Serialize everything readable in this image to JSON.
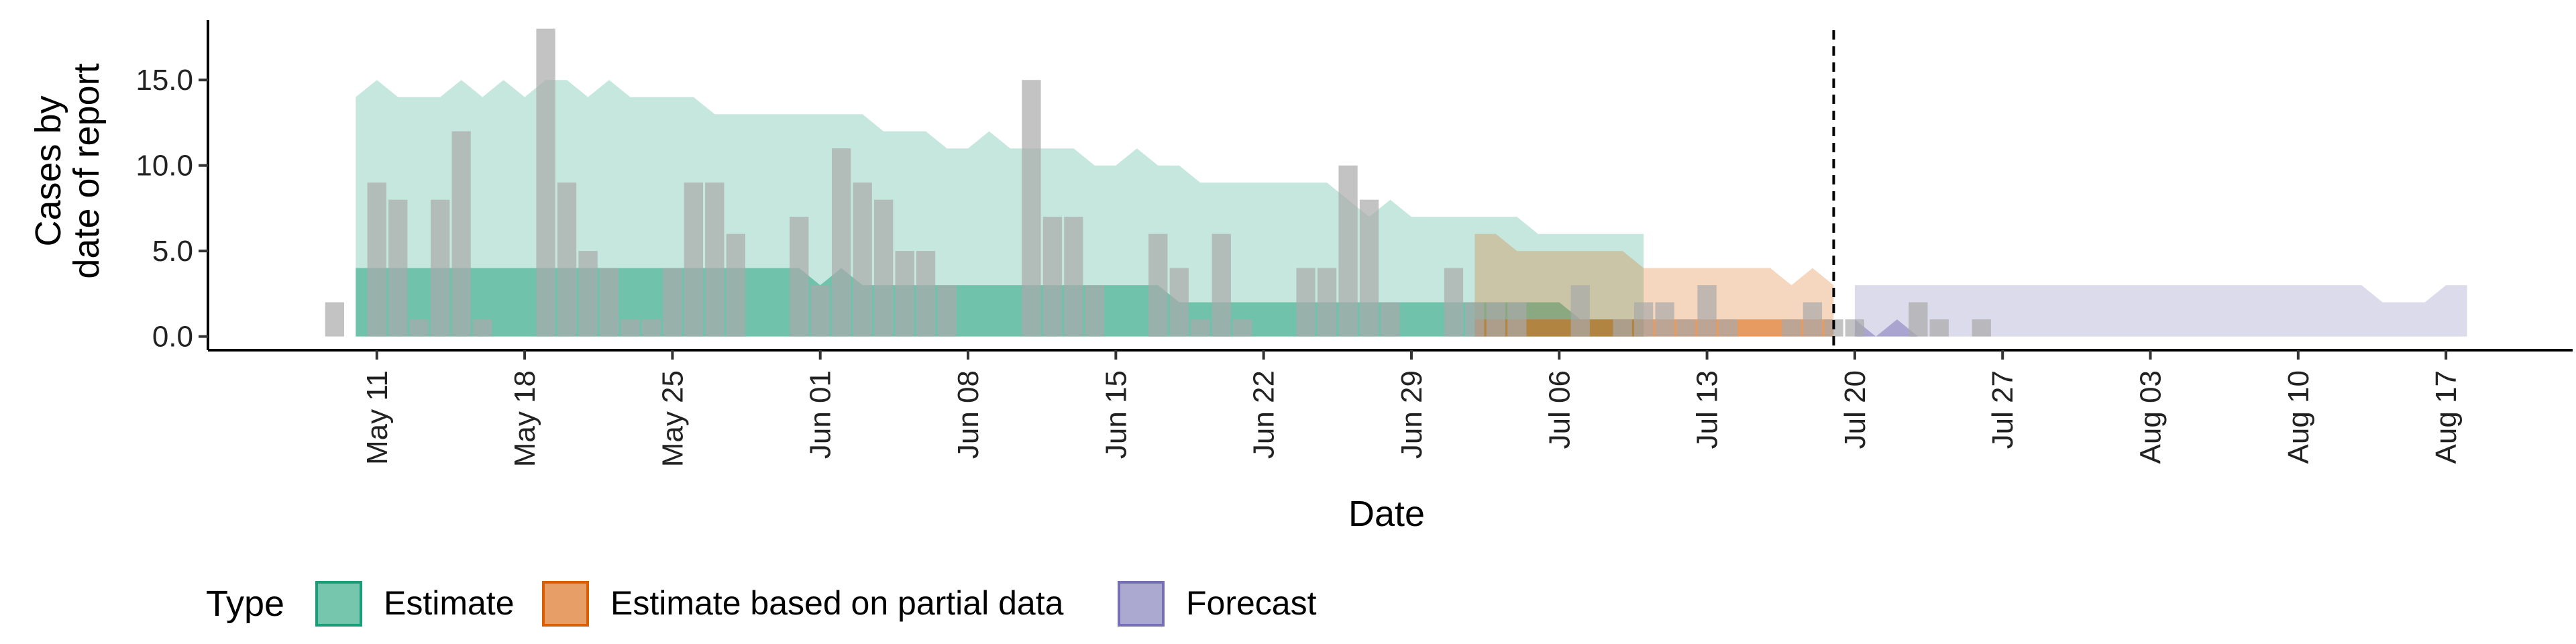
{
  "chart_data": {
    "type": "area",
    "xlabel": "Date",
    "ylabel_lines": [
      "Cases by",
      "date of report"
    ],
    "ylim": [
      -0.8,
      18.5
    ],
    "y_ticks": [
      0,
      5,
      10,
      15
    ],
    "y_tick_labels": [
      "0.0",
      "5.0",
      "10.0",
      "15.0"
    ],
    "x_ticks": [
      "2020-05-11",
      "2020-05-18",
      "2020-05-25",
      "2020-06-01",
      "2020-06-08",
      "2020-06-15",
      "2020-06-22",
      "2020-06-29",
      "2020-07-06",
      "2020-07-13",
      "2020-07-20",
      "2020-07-27",
      "2020-08-03",
      "2020-08-10",
      "2020-08-17"
    ],
    "x_tick_labels": [
      "May 11",
      "May 18",
      "May 25",
      "Jun 01",
      "Jun 08",
      "Jun 15",
      "Jun 22",
      "Jun 29",
      "Jul 06",
      "Jul 13",
      "Jul 20",
      "Jul 27",
      "Aug 03",
      "Aug 10",
      "Aug 17"
    ],
    "xlim": [
      "2020-05-03",
      "2020-08-23"
    ],
    "forecast_line_date": "2020-07-19",
    "legend_title": "Type",
    "legend_position": "bottom",
    "colors": {
      "Estimate": "#1b9e77",
      "Estimate based on partial data": "#d95f02",
      "Forecast": "#7570b3",
      "observed": "#a9a9a9"
    },
    "observed_cases": {
      "start_date": "2020-05-09",
      "values": [
        2,
        0,
        9,
        8,
        1,
        8,
        12,
        1,
        0,
        0,
        18,
        9,
        5,
        4,
        1,
        1,
        4,
        9,
        9,
        6,
        0,
        0,
        7,
        3,
        11,
        9,
        8,
        5,
        5,
        3,
        0,
        0,
        0,
        15,
        7,
        7,
        3,
        0,
        0,
        6,
        4,
        1,
        6,
        1,
        0,
        0,
        4,
        4,
        10,
        8,
        2,
        0,
        0,
        4,
        2,
        2,
        2,
        0,
        0,
        3,
        0,
        1,
        2,
        2,
        1,
        3,
        1,
        0,
        0,
        1,
        2,
        1,
        1,
        0,
        0,
        2,
        1,
        0,
        1,
        0,
        0,
        0
      ]
    },
    "series": [
      {
        "name": "Estimate",
        "start_date": "2020-05-10",
        "inner_lower": [
          0,
          0,
          0,
          0,
          0,
          0,
          0,
          0,
          0,
          0,
          0,
          0,
          0,
          0,
          0,
          0,
          0,
          0,
          0,
          0,
          0,
          0,
          0,
          0,
          0,
          0,
          0,
          0,
          0,
          0,
          0,
          0,
          0,
          0,
          0,
          0,
          0,
          0,
          0,
          0,
          0,
          0,
          0,
          0,
          0,
          0,
          0,
          0,
          0,
          0,
          0,
          0,
          0,
          0,
          0,
          0,
          0,
          0,
          0,
          0,
          0,
          0
        ],
        "inner_upper": [
          4,
          4,
          4,
          4,
          4,
          4,
          4,
          4,
          4,
          4,
          4,
          4,
          4,
          4,
          4,
          4,
          4,
          4,
          4,
          4,
          4,
          4,
          3,
          4,
          3,
          3,
          3,
          3,
          3,
          3,
          3,
          3,
          3,
          3,
          3,
          3,
          3,
          3,
          3,
          2,
          2,
          2,
          2,
          2,
          2,
          2,
          2,
          2,
          2,
          2,
          2,
          2,
          2,
          2,
          2,
          2,
          2,
          2,
          1,
          1,
          1,
          1
        ],
        "outer_lower": [
          0,
          0,
          0,
          0,
          0,
          0,
          0,
          0,
          0,
          0,
          0,
          0,
          0,
          0,
          0,
          0,
          0,
          0,
          0,
          0,
          0,
          0,
          0,
          0,
          0,
          0,
          0,
          0,
          0,
          0,
          0,
          0,
          0,
          0,
          0,
          0,
          0,
          0,
          0,
          0,
          0,
          0,
          0,
          0,
          0,
          0,
          0,
          0,
          0,
          0,
          0,
          0,
          0,
          0,
          0,
          0,
          0,
          0,
          0,
          0,
          0,
          0
        ],
        "outer_upper": [
          14,
          15,
          14,
          14,
          14,
          15,
          14,
          15,
          14,
          15,
          15,
          14,
          15,
          14,
          14,
          14,
          14,
          13,
          13,
          13,
          13,
          13,
          13,
          13,
          13,
          12,
          12,
          12,
          11,
          11,
          12,
          11,
          11,
          11,
          11,
          10,
          10,
          11,
          10,
          10,
          9,
          9,
          9,
          9,
          9,
          9,
          9,
          8,
          7,
          8,
          7,
          7,
          7,
          7,
          7,
          7,
          6,
          6,
          6,
          6,
          6,
          6
        ]
      },
      {
        "name": "Estimate based on partial data",
        "start_date": "2020-07-02",
        "inner_lower": [
          0,
          0,
          0,
          0,
          0,
          0,
          0,
          0,
          0,
          0,
          0,
          0,
          0,
          0,
          0,
          0,
          0,
          0
        ],
        "inner_upper": [
          1,
          1,
          1,
          1,
          1,
          1,
          1,
          1,
          1,
          1,
          1,
          1,
          1,
          1,
          1,
          1,
          1,
          1
        ],
        "outer_lower": [
          0,
          0,
          0,
          0,
          0,
          0,
          0,
          0,
          0,
          0,
          0,
          0,
          0,
          0,
          0,
          0,
          0,
          0
        ],
        "outer_upper": [
          6,
          6,
          5,
          5,
          5,
          5,
          5,
          5,
          4,
          4,
          4,
          4,
          4,
          4,
          4,
          3,
          4,
          3
        ]
      },
      {
        "name": "Forecast",
        "start_date": "2020-07-20",
        "inner_lower": [
          0,
          0,
          0,
          0,
          0,
          0,
          0,
          0,
          0,
          0,
          0,
          0,
          0,
          0,
          0,
          0,
          0,
          0,
          0,
          0,
          0,
          0,
          0,
          0,
          0,
          0,
          0,
          0,
          0,
          0
        ],
        "inner_upper": [
          1,
          0,
          1,
          0,
          0,
          0,
          0,
          0,
          0,
          0,
          0,
          0,
          0,
          0,
          0,
          0,
          0,
          0,
          0,
          0,
          0,
          0,
          0,
          0,
          0,
          0,
          0,
          0,
          0,
          0
        ],
        "outer_lower": [
          0,
          0,
          0,
          0,
          0,
          0,
          0,
          0,
          0,
          0,
          0,
          0,
          0,
          0,
          0,
          0,
          0,
          0,
          0,
          0,
          0,
          0,
          0,
          0,
          0,
          0,
          0,
          0,
          0,
          0
        ],
        "outer_upper": [
          3,
          3,
          3,
          3,
          3,
          3,
          3,
          3,
          3,
          3,
          3,
          3,
          3,
          3,
          3,
          3,
          3,
          3,
          3,
          3,
          3,
          3,
          3,
          3,
          3,
          2,
          2,
          2,
          3,
          3
        ]
      }
    ]
  }
}
